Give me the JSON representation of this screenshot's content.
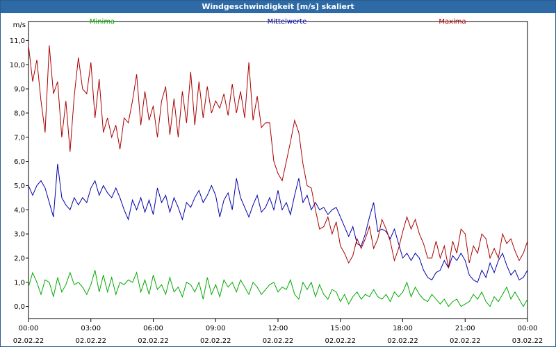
{
  "window": {
    "title": "Windgeschwindigkeit [m/s] skaliert"
  },
  "colors": {
    "minima": "#00aa00",
    "mittel": "#0000aa",
    "maxima": "#aa0000",
    "titlebar": "#2e6aa5"
  },
  "chart_data": {
    "type": "line",
    "title": "Windgeschwindigkeit [m/s] skaliert",
    "ylabel": "m/s",
    "ylim": [
      -0.5,
      11.5
    ],
    "xlim": [
      0,
      24
    ],
    "yticks": [
      "0,0",
      "1,0",
      "2,0",
      "3,0",
      "4,0",
      "5,0",
      "6,0",
      "7,0",
      "8,0",
      "9,0",
      "10,0",
      "11,0"
    ],
    "xticks": [
      {
        "time": "00:00",
        "date": "02.02.22"
      },
      {
        "time": "03:00",
        "date": "02.02.22"
      },
      {
        "time": "06:00",
        "date": "02.02.22"
      },
      {
        "time": "09:00",
        "date": "02.02.22"
      },
      {
        "time": "12:00",
        "date": "02.02.22"
      },
      {
        "time": "15:00",
        "date": "02.02.22"
      },
      {
        "time": "18:00",
        "date": "02.02.22"
      },
      {
        "time": "21:00",
        "date": "02.02.22"
      },
      {
        "time": "00:00",
        "date": "03.02.22"
      }
    ],
    "grid": true,
    "series": [
      {
        "name": "Minima",
        "color": "#00aa00",
        "x": [
          0,
          0.2,
          0.4,
          0.6,
          0.8,
          1.0,
          1.2,
          1.4,
          1.6,
          1.8,
          2.0,
          2.2,
          2.4,
          2.6,
          2.8,
          3.0,
          3.2,
          3.4,
          3.6,
          3.8,
          4.0,
          4.2,
          4.4,
          4.6,
          4.8,
          5.0,
          5.2,
          5.4,
          5.6,
          5.8,
          6.0,
          6.2,
          6.4,
          6.6,
          6.8,
          7.0,
          7.2,
          7.4,
          7.6,
          7.8,
          8.0,
          8.2,
          8.4,
          8.6,
          8.8,
          9.0,
          9.2,
          9.4,
          9.6,
          9.8,
          10.0,
          10.2,
          10.4,
          10.6,
          10.8,
          11.0,
          11.2,
          11.4,
          11.6,
          11.8,
          12.0,
          12.2,
          12.4,
          12.6,
          12.8,
          13.0,
          13.2,
          13.4,
          13.6,
          13.8,
          14.0,
          14.2,
          14.4,
          14.6,
          14.8,
          15.0,
          15.2,
          15.4,
          15.6,
          15.8,
          16.0,
          16.2,
          16.4,
          16.6,
          16.8,
          17.0,
          17.2,
          17.4,
          17.6,
          17.8,
          18.0,
          18.2,
          18.4,
          18.6,
          18.8,
          19.0,
          19.2,
          19.4,
          19.6,
          19.8,
          20.0,
          20.2,
          20.4,
          20.6,
          20.8,
          21.0,
          21.2,
          21.4,
          21.6,
          21.8,
          22.0,
          22.2,
          22.4,
          22.6,
          22.8,
          23.0,
          23.2,
          23.4,
          23.6,
          23.8,
          24.0
        ],
        "y": [
          0.8,
          1.4,
          1.0,
          0.5,
          1.1,
          1.0,
          0.4,
          1.2,
          0.6,
          0.9,
          1.4,
          0.9,
          1.0,
          0.8,
          0.5,
          0.9,
          1.5,
          0.6,
          1.3,
          0.6,
          1.2,
          0.5,
          1.0,
          0.9,
          1.1,
          1.0,
          1.4,
          0.6,
          1.1,
          0.5,
          1.3,
          0.7,
          0.9,
          0.5,
          1.2,
          0.6,
          0.8,
          0.4,
          1.0,
          0.9,
          0.6,
          1.0,
          0.3,
          1.2,
          0.5,
          0.9,
          0.4,
          1.1,
          0.8,
          1.0,
          0.6,
          1.1,
          0.8,
          0.5,
          1.0,
          0.8,
          0.5,
          0.7,
          0.9,
          1.0,
          0.6,
          0.8,
          0.7,
          1.1,
          0.5,
          0.3,
          1.0,
          0.7,
          1.0,
          0.4,
          0.9,
          0.5,
          0.3,
          0.7,
          0.6,
          0.2,
          0.5,
          0.1,
          0.4,
          0.6,
          0.3,
          0.5,
          0.4,
          0.7,
          0.4,
          0.3,
          0.5,
          0.2,
          0.6,
          0.4,
          0.6,
          1.0,
          0.4,
          0.8,
          0.5,
          0.3,
          0.2,
          0.5,
          0.3,
          0.1,
          0.3,
          0.0,
          0.2,
          0.3,
          0.0,
          0.1,
          0.2,
          0.5,
          0.3,
          0.6,
          0.2,
          0.0,
          0.4,
          0.2,
          0.5,
          0.8,
          0.3,
          0.6,
          0.3,
          0.0,
          0.3
        ]
      },
      {
        "name": "Mittelwerte",
        "color": "#0000aa",
        "x": [
          0,
          0.2,
          0.4,
          0.6,
          0.8,
          1.0,
          1.2,
          1.4,
          1.6,
          1.8,
          2.0,
          2.2,
          2.4,
          2.6,
          2.8,
          3.0,
          3.2,
          3.4,
          3.6,
          3.8,
          4.0,
          4.2,
          4.4,
          4.6,
          4.8,
          5.0,
          5.2,
          5.4,
          5.6,
          5.8,
          6.0,
          6.2,
          6.4,
          6.6,
          6.8,
          7.0,
          7.2,
          7.4,
          7.6,
          7.8,
          8.0,
          8.2,
          8.4,
          8.6,
          8.8,
          9.0,
          9.2,
          9.4,
          9.6,
          9.8,
          10.0,
          10.2,
          10.4,
          10.6,
          10.8,
          11.0,
          11.2,
          11.4,
          11.6,
          11.8,
          12.0,
          12.2,
          12.4,
          12.6,
          12.8,
          13.0,
          13.2,
          13.4,
          13.6,
          13.8,
          14.0,
          14.2,
          14.4,
          14.6,
          14.8,
          15.0,
          15.2,
          15.4,
          15.6,
          15.8,
          16.0,
          16.2,
          16.4,
          16.6,
          16.8,
          17.0,
          17.2,
          17.4,
          17.6,
          17.8,
          18.0,
          18.2,
          18.4,
          18.6,
          18.8,
          19.0,
          19.2,
          19.4,
          19.6,
          19.8,
          20.0,
          20.2,
          20.4,
          20.6,
          20.8,
          21.0,
          21.2,
          21.4,
          21.6,
          21.8,
          22.0,
          22.2,
          22.4,
          22.6,
          22.8,
          23.0,
          23.2,
          23.4,
          23.6,
          23.8,
          24.0
        ],
        "y": [
          5.0,
          4.6,
          5.0,
          5.2,
          4.9,
          4.3,
          3.7,
          5.9,
          4.5,
          4.2,
          4.0,
          4.5,
          4.2,
          4.5,
          4.3,
          4.9,
          5.2,
          4.6,
          5.0,
          4.7,
          4.5,
          4.9,
          4.5,
          4.0,
          3.6,
          4.4,
          4.0,
          4.5,
          3.9,
          4.4,
          3.8,
          4.9,
          4.3,
          4.6,
          3.9,
          4.5,
          4.1,
          3.6,
          4.3,
          4.1,
          4.5,
          4.8,
          4.3,
          4.6,
          5.0,
          4.6,
          3.7,
          4.4,
          4.7,
          4.0,
          5.3,
          4.5,
          4.1,
          3.7,
          4.2,
          4.6,
          3.9,
          4.1,
          4.5,
          4.0,
          4.8,
          4.0,
          4.3,
          3.8,
          4.6,
          5.3,
          4.3,
          4.6,
          4.0,
          4.3,
          4.0,
          4.1,
          3.8,
          4.0,
          4.1,
          3.7,
          3.3,
          2.9,
          3.3,
          2.6,
          2.5,
          3.0,
          3.7,
          4.3,
          3.1,
          3.2,
          3.1,
          2.8,
          3.2,
          2.6,
          2.0,
          2.2,
          1.9,
          2.2,
          2.0,
          1.5,
          1.2,
          1.1,
          1.4,
          1.5,
          1.9,
          1.6,
          2.1,
          1.9,
          2.2,
          1.9,
          1.3,
          1.1,
          1.0,
          1.5,
          1.2,
          1.8,
          1.4,
          1.9,
          2.2,
          1.7,
          1.3,
          1.5,
          1.1,
          1.2,
          1.5
        ]
      },
      {
        "name": "Maxima",
        "color": "#aa0000",
        "x": [
          0,
          0.2,
          0.4,
          0.6,
          0.8,
          1.0,
          1.2,
          1.4,
          1.6,
          1.8,
          2.0,
          2.2,
          2.4,
          2.6,
          2.8,
          3.0,
          3.2,
          3.4,
          3.6,
          3.8,
          4.0,
          4.2,
          4.4,
          4.6,
          4.8,
          5.0,
          5.2,
          5.4,
          5.6,
          5.8,
          6.0,
          6.2,
          6.4,
          6.6,
          6.8,
          7.0,
          7.2,
          7.4,
          7.6,
          7.8,
          8.0,
          8.2,
          8.4,
          8.6,
          8.8,
          9.0,
          9.2,
          9.4,
          9.6,
          9.8,
          10.0,
          10.2,
          10.4,
          10.6,
          10.8,
          11.0,
          11.2,
          11.4,
          11.6,
          11.8,
          12.0,
          12.2,
          12.4,
          12.6,
          12.8,
          13.0,
          13.2,
          13.4,
          13.6,
          13.8,
          14.0,
          14.2,
          14.4,
          14.6,
          14.8,
          15.0,
          15.2,
          15.4,
          15.6,
          15.8,
          16.0,
          16.2,
          16.4,
          16.6,
          16.8,
          17.0,
          17.2,
          17.4,
          17.6,
          17.8,
          18.0,
          18.2,
          18.4,
          18.6,
          18.8,
          19.0,
          19.2,
          19.4,
          19.6,
          19.8,
          20.0,
          20.2,
          20.4,
          20.6,
          20.8,
          21.0,
          21.2,
          21.4,
          21.6,
          21.8,
          22.0,
          22.2,
          22.4,
          22.6,
          22.8,
          23.0,
          23.2,
          23.4,
          23.6,
          23.8,
          24.0
        ],
        "y": [
          10.8,
          9.3,
          10.2,
          8.5,
          7.2,
          10.8,
          8.8,
          9.3,
          7.0,
          8.5,
          6.4,
          8.7,
          10.3,
          9.0,
          8.8,
          10.1,
          7.8,
          9.4,
          7.2,
          7.8,
          7.0,
          7.5,
          6.5,
          7.8,
          7.6,
          8.5,
          9.6,
          7.5,
          8.9,
          7.7,
          8.3,
          7.0,
          8.5,
          9.1,
          7.1,
          8.6,
          7.0,
          8.9,
          7.6,
          9.7,
          7.5,
          9.3,
          7.8,
          9.1,
          8.0,
          8.5,
          8.2,
          8.8,
          7.9,
          9.2,
          8.0,
          8.9,
          7.8,
          10.1,
          7.7,
          8.7,
          7.4,
          7.6,
          7.6,
          6.0,
          5.5,
          5.2,
          6.0,
          6.8,
          7.7,
          7.2,
          5.9,
          5.0,
          4.9,
          4.0,
          3.2,
          3.3,
          3.7,
          3.0,
          3.5,
          2.5,
          2.2,
          1.8,
          2.1,
          2.8,
          2.4,
          2.8,
          3.3,
          2.4,
          2.8,
          3.6,
          3.2,
          2.7,
          1.9,
          2.4,
          3.1,
          3.7,
          3.2,
          3.6,
          3.0,
          2.6,
          2.0,
          2.0,
          2.7,
          2.0,
          2.5,
          1.6,
          2.7,
          2.2,
          3.2,
          3.0,
          1.8,
          2.5,
          2.2,
          3.0,
          2.8,
          2.0,
          2.4,
          2.0,
          3.0,
          2.6,
          2.8,
          2.3,
          1.9,
          2.2,
          2.7
        ]
      }
    ]
  }
}
